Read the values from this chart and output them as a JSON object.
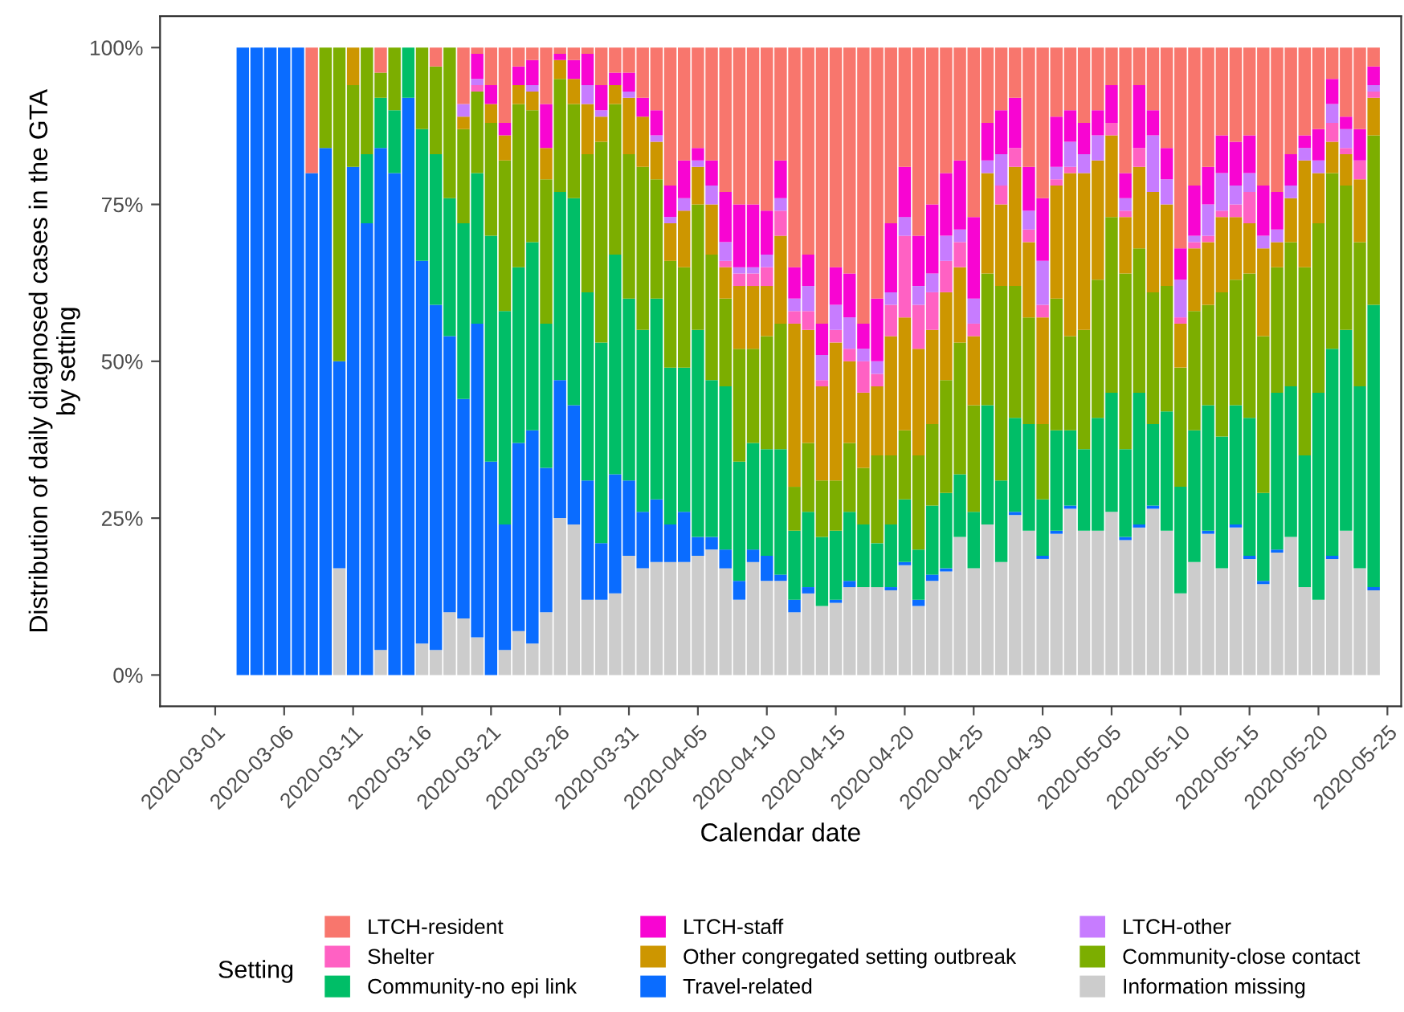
{
  "chart_data": {
    "type": "bar",
    "stacked": true,
    "xlabel": "Calendar date",
    "ylabel": "Distribution of daily diagnosed cases in the GTA\nby setting",
    "legend_title": "Setting",
    "legend": "bottom",
    "grid": false,
    "x": [
      "2020-03-03",
      "2020-03-04",
      "2020-03-05",
      "2020-03-06",
      "2020-03-07",
      "2020-03-08",
      "2020-03-09",
      "2020-03-10",
      "2020-03-11",
      "2020-03-12",
      "2020-03-13",
      "2020-03-14",
      "2020-03-15",
      "2020-03-16",
      "2020-03-17",
      "2020-03-18",
      "2020-03-19",
      "2020-03-20",
      "2020-03-21",
      "2020-03-22",
      "2020-03-23",
      "2020-03-24",
      "2020-03-25",
      "2020-03-26",
      "2020-03-27",
      "2020-03-28",
      "2020-03-29",
      "2020-03-30",
      "2020-03-31",
      "2020-04-01",
      "2020-04-02",
      "2020-04-03",
      "2020-04-04",
      "2020-04-05",
      "2020-04-06",
      "2020-04-07",
      "2020-04-08",
      "2020-04-09",
      "2020-04-10",
      "2020-04-11",
      "2020-04-12",
      "2020-04-13",
      "2020-04-14",
      "2020-04-15",
      "2020-04-16",
      "2020-04-17",
      "2020-04-18",
      "2020-04-19",
      "2020-04-20",
      "2020-04-21",
      "2020-04-22",
      "2020-04-23",
      "2020-04-24",
      "2020-04-25",
      "2020-04-26",
      "2020-04-27",
      "2020-04-28",
      "2020-04-29",
      "2020-04-30",
      "2020-05-01",
      "2020-05-02",
      "2020-05-03",
      "2020-05-04",
      "2020-05-05",
      "2020-05-06",
      "2020-05-07",
      "2020-05-08",
      "2020-05-09",
      "2020-05-10",
      "2020-05-11",
      "2020-05-12",
      "2020-05-13",
      "2020-05-14",
      "2020-05-15",
      "2020-05-16",
      "2020-05-17",
      "2020-05-18",
      "2020-05-19",
      "2020-05-20",
      "2020-05-21",
      "2020-05-22",
      "2020-05-23",
      "2020-05-24"
    ],
    "xlim": [
      "2020-02-26",
      "2020-05-26"
    ],
    "xticks": [
      "2020-03-01",
      "2020-03-06",
      "2020-03-11",
      "2020-03-16",
      "2020-03-21",
      "2020-03-26",
      "2020-03-31",
      "2020-04-05",
      "2020-04-10",
      "2020-04-15",
      "2020-04-20",
      "2020-04-25",
      "2020-04-30",
      "2020-05-05",
      "2020-05-10",
      "2020-05-15",
      "2020-05-20",
      "2020-05-25"
    ],
    "ylim": [
      -5,
      105
    ],
    "yticks": [
      {
        "value": 0,
        "label": "0%"
      },
      {
        "value": 25,
        "label": "25%"
      },
      {
        "value": 50,
        "label": "50%"
      },
      {
        "value": 75,
        "label": "75%"
      },
      {
        "value": 100,
        "label": "100%"
      }
    ],
    "series": [
      {
        "name": "Information missing",
        "color": "#cccccc",
        "values": [
          0,
          0,
          0,
          0,
          0,
          0,
          0,
          17,
          0,
          0,
          4,
          0,
          0,
          5,
          4,
          10,
          9,
          6,
          0,
          4,
          7,
          5,
          10,
          25,
          24,
          12,
          12,
          13,
          19,
          17,
          18,
          18,
          18,
          19,
          20,
          17,
          12,
          18,
          15,
          15,
          10,
          13,
          11,
          11.5,
          14,
          14,
          14,
          13.5,
          17.5,
          11,
          15,
          16.5,
          22,
          17,
          24,
          18,
          25.5,
          23,
          18.5,
          22.5,
          26.5,
          23,
          23,
          26,
          21.5,
          23.5,
          26.5,
          23,
          13,
          18,
          22.5,
          17,
          23.5,
          18.5,
          14.5,
          19.5,
          22,
          14,
          12,
          18.5,
          23,
          17,
          13.5
        ]
      },
      {
        "name": "Travel-related",
        "color": "#0a6cff",
        "values": [
          100,
          100,
          100,
          100,
          100,
          80,
          84,
          33,
          81,
          72,
          80,
          80,
          92,
          61,
          55,
          44,
          35,
          50,
          34,
          20,
          30,
          34,
          23,
          22,
          19,
          19,
          9,
          19,
          12,
          9,
          10,
          6,
          8,
          3,
          2,
          3,
          3,
          2,
          4,
          1,
          2,
          1,
          0,
          0.5,
          1,
          0,
          0,
          0.5,
          0.5,
          1,
          1,
          0.5,
          0,
          0,
          0,
          0,
          0.5,
          0,
          0.5,
          0.5,
          0.5,
          0,
          0,
          0,
          0.5,
          0.5,
          0.5,
          0,
          0,
          0,
          0.5,
          0,
          0.5,
          0.5,
          0.5,
          0.5,
          0,
          0,
          0,
          0.5,
          0,
          0,
          0.5
        ]
      },
      {
        "name": "Community-no epi link",
        "color": "#00be67",
        "values": [
          0,
          0,
          0,
          0,
          0,
          0,
          0,
          0,
          0,
          11,
          8,
          10,
          8,
          21,
          24,
          22,
          28,
          24,
          36,
          34,
          28,
          30,
          23,
          30,
          33,
          30,
          32,
          35,
          29,
          29,
          32,
          25,
          23,
          33,
          25,
          26,
          19,
          17,
          17,
          20,
          11,
          12,
          11,
          11,
          11,
          10,
          7,
          10,
          10,
          8,
          11,
          12,
          10,
          9,
          19,
          13,
          15,
          17,
          9,
          16,
          12,
          13,
          18,
          19,
          14,
          21,
          13,
          19,
          17,
          21,
          20,
          21,
          19,
          22,
          14,
          25,
          24,
          21,
          33,
          33,
          32,
          29,
          45
        ]
      },
      {
        "name": "Community-close contact",
        "color": "#7cae00",
        "values": [
          0,
          0,
          0,
          0,
          0,
          0,
          16,
          50,
          13,
          17,
          4,
          10,
          0,
          13,
          14,
          24,
          15,
          13,
          18,
          24,
          26,
          21,
          23,
          18,
          15,
          22,
          32,
          24,
          23,
          26,
          19,
          17,
          16,
          20,
          20,
          14,
          18,
          15,
          18,
          20,
          7,
          11,
          9,
          8,
          11,
          9,
          14,
          11,
          11,
          15,
          13,
          18,
          21,
          17,
          21,
          31,
          21,
          17,
          12,
          21,
          15,
          19,
          22,
          28,
          28,
          23,
          21,
          20,
          19,
          19,
          16,
          23,
          20,
          23,
          25,
          20,
          23,
          30,
          27,
          28,
          23,
          23,
          27
        ]
      },
      {
        "name": "Other congregated setting outbreak",
        "color": "#cd9600",
        "values": [
          0,
          0,
          0,
          0,
          0,
          0,
          0,
          0,
          6,
          0,
          0,
          0,
          0,
          0,
          0,
          0,
          2,
          0,
          3,
          4,
          3,
          3,
          5,
          3,
          4,
          8,
          4,
          3,
          9,
          8,
          6,
          6,
          9,
          6,
          8,
          5,
          10,
          10,
          8,
          14,
          26,
          18,
          15,
          22,
          13,
          12,
          11,
          19,
          18,
          17,
          15,
          14,
          12,
          11,
          16,
          13,
          19,
          12,
          17,
          18,
          26,
          25,
          19,
          13,
          9,
          13,
          16,
          13,
          7,
          10,
          10,
          12,
          10,
          8,
          14,
          4,
          7,
          17,
          8,
          5,
          5,
          10,
          6
        ]
      },
      {
        "name": "Shelter",
        "color": "#ff61c3",
        "values": [
          0,
          0,
          0,
          0,
          0,
          0,
          0,
          0,
          0,
          0,
          0,
          0,
          0,
          0,
          0,
          0,
          0,
          1,
          0,
          0,
          0,
          0,
          0,
          0,
          0,
          0,
          0,
          0,
          0,
          0,
          0,
          0,
          0,
          0,
          0,
          1,
          2,
          2,
          3,
          4,
          2,
          3,
          1,
          2,
          2,
          5,
          2,
          5,
          13,
          7,
          6,
          5,
          4,
          2,
          0,
          3,
          3,
          2,
          2,
          1,
          1,
          0,
          0,
          2,
          1,
          3,
          0,
          0,
          1,
          1,
          1,
          1,
          2,
          5,
          0,
          0,
          0,
          0,
          0,
          3,
          1,
          3,
          1
        ]
      },
      {
        "name": "LTCH-other",
        "color": "#c77cff",
        "values": [
          0,
          0,
          0,
          0,
          0,
          0,
          0,
          0,
          0,
          0,
          0,
          0,
          0,
          0,
          0,
          0,
          2,
          1,
          0,
          0,
          0,
          1,
          0,
          0,
          0,
          3,
          1,
          0,
          1,
          0,
          1,
          1,
          2,
          1,
          3,
          3,
          1,
          1,
          2,
          2,
          2,
          4,
          4,
          4,
          5,
          2,
          2,
          2,
          3,
          3,
          3,
          4,
          2,
          4,
          2,
          5,
          0,
          3,
          7,
          2,
          4,
          3,
          4,
          0,
          2,
          0,
          9,
          4,
          6,
          1,
          5,
          6,
          3,
          3,
          2,
          2,
          2,
          2,
          2,
          3,
          3,
          0,
          1
        ]
      },
      {
        "name": "LTCH-staff",
        "color": "#f805d2",
        "values": [
          0,
          0,
          0,
          0,
          0,
          0,
          0,
          0,
          0,
          0,
          0,
          0,
          0,
          0,
          0,
          0,
          0,
          4,
          3,
          2,
          3,
          4,
          7,
          1,
          3,
          5,
          4,
          2,
          3,
          3,
          4,
          5,
          6,
          2,
          4,
          8,
          10,
          10,
          7,
          6,
          5,
          5,
          5,
          6,
          7,
          4,
          10,
          11,
          8,
          8,
          11,
          10,
          11,
          13,
          6,
          7,
          8,
          7,
          10,
          8,
          5,
          5,
          4,
          6,
          4,
          10,
          4,
          5,
          5,
          8,
          6,
          6,
          7,
          6,
          8,
          6,
          5,
          2,
          5,
          4,
          2,
          5,
          3
        ]
      },
      {
        "name": "LTCH-resident",
        "color": "#f8766d",
        "values": [
          0,
          0,
          0,
          0,
          0,
          20,
          0,
          0,
          0,
          0,
          4,
          0,
          0,
          0,
          3,
          0,
          9,
          1,
          6,
          12,
          3,
          2,
          9,
          1,
          2,
          1,
          6,
          4,
          4,
          8,
          10,
          22,
          18,
          16,
          18,
          23,
          25,
          25,
          26,
          18,
          35,
          33,
          44,
          35,
          36,
          44,
          40,
          28,
          19,
          30,
          25,
          20,
          18,
          27,
          12,
          10,
          8,
          19,
          24,
          11,
          10,
          12,
          10,
          6,
          20,
          6,
          10,
          16,
          32,
          22,
          19,
          14,
          15,
          14,
          22,
          23,
          17,
          14,
          13,
          5,
          11,
          13,
          3
        ]
      }
    ]
  }
}
